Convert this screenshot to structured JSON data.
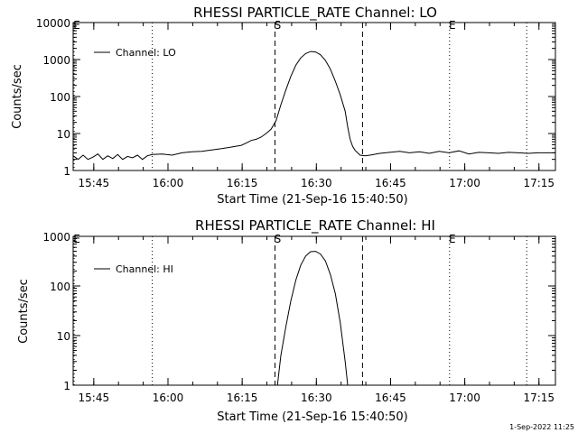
{
  "chart_data": [
    {
      "type": "line",
      "title": "RHESSI PARTICLE_RATE Channel: LO",
      "xlabel": "Start Time (21-Sep-16 15:40:50)",
      "ylabel": "Counts/sec",
      "yscale": "log",
      "ylim": [
        1,
        10000
      ],
      "yticks": [
        1,
        10,
        100,
        1000,
        10000
      ],
      "ytick_labels": [
        "1",
        "10",
        "100",
        "1000",
        "10000"
      ],
      "xlim_minutes": [
        0,
        97.5
      ],
      "xticks_minutes": [
        4.17,
        19.17,
        34.17,
        49.17,
        64.17,
        79.17,
        94.17
      ],
      "xtick_labels": [
        "15:45",
        "16:00",
        "16:15",
        "16:30",
        "16:45",
        "17:00",
        "17:15"
      ],
      "legend": "Channel: LO",
      "legend_position": "top-left",
      "markers": [
        {
          "label": "E",
          "minute": 0.2,
          "style": "dotted"
        },
        {
          "label": "",
          "minute": 16.0,
          "style": "dotted"
        },
        {
          "label": "S",
          "minute": 40.8,
          "style": "dashed"
        },
        {
          "label": "",
          "minute": 58.5,
          "style": "dashed"
        },
        {
          "label": "E",
          "minute": 76.1,
          "style": "dotted"
        },
        {
          "label": "",
          "minute": 91.7,
          "style": "dotted"
        }
      ],
      "series": [
        {
          "name": "Channel: LO",
          "x": [
            0,
            1,
            2,
            3,
            4,
            5,
            6,
            7,
            8,
            9,
            10,
            11,
            12,
            13,
            14,
            15,
            16,
            18,
            20,
            22,
            24,
            26,
            28,
            30,
            32,
            34,
            35,
            36,
            37,
            38,
            39,
            40,
            41,
            42,
            43,
            44,
            45,
            46,
            47,
            48,
            49,
            50,
            51,
            52,
            53,
            54,
            55,
            55.5,
            56,
            56.5,
            57,
            58,
            59,
            60,
            62,
            64,
            66,
            68,
            70,
            72,
            74,
            76,
            78,
            80,
            82,
            84,
            86,
            88,
            90,
            92,
            94,
            97.5
          ],
          "y": [
            2.5,
            2.0,
            2.6,
            2.0,
            2.3,
            2.8,
            2.0,
            2.5,
            2.1,
            2.7,
            2.0,
            2.4,
            2.2,
            2.6,
            2.0,
            2.5,
            2.7,
            2.8,
            2.6,
            3.0,
            3.2,
            3.3,
            3.6,
            3.9,
            4.3,
            4.8,
            5.5,
            6.5,
            7.0,
            8.0,
            10.0,
            13.0,
            22.0,
            60.0,
            150.0,
            350.0,
            700.0,
            1100.0,
            1450.0,
            1650.0,
            1600.0,
            1350.0,
            950.0,
            550.0,
            260.0,
            110.0,
            40.0,
            15.0,
            7.0,
            4.5,
            3.5,
            2.6,
            2.5,
            2.6,
            2.9,
            3.1,
            3.3,
            3.0,
            3.2,
            2.9,
            3.3,
            3.0,
            3.4,
            2.8,
            3.1,
            3.0,
            2.9,
            3.1,
            3.0,
            2.9,
            3.0,
            3.0
          ]
        }
      ]
    },
    {
      "type": "line",
      "title": "RHESSI PARTICLE_RATE Channel: HI",
      "xlabel": "Start Time (21-Sep-16 15:40:50)",
      "ylabel": "Counts/sec",
      "yscale": "log",
      "ylim": [
        1,
        1000
      ],
      "yticks": [
        1,
        10,
        100,
        1000
      ],
      "ytick_labels": [
        "1",
        "10",
        "100",
        "1000"
      ],
      "xlim_minutes": [
        0,
        97.5
      ],
      "xticks_minutes": [
        4.17,
        19.17,
        34.17,
        49.17,
        64.17,
        79.17,
        94.17
      ],
      "xtick_labels": [
        "15:45",
        "16:00",
        "16:15",
        "16:30",
        "16:45",
        "17:00",
        "17:15"
      ],
      "legend": "Channel: HI",
      "legend_position": "top-left",
      "markers": [
        {
          "label": "E",
          "minute": 0.2,
          "style": "dotted"
        },
        {
          "label": "",
          "minute": 16.0,
          "style": "dotted"
        },
        {
          "label": "S",
          "minute": 40.8,
          "style": "dashed"
        },
        {
          "label": "",
          "minute": 58.5,
          "style": "dashed"
        },
        {
          "label": "E",
          "minute": 76.1,
          "style": "dotted"
        },
        {
          "label": "",
          "minute": 91.7,
          "style": "dotted"
        }
      ],
      "series": [
        {
          "name": "Channel: HI",
          "x": [
            41.3,
            42,
            43,
            44,
            45,
            46,
            47,
            48,
            49,
            50,
            51,
            52,
            53,
            54,
            55,
            55.5
          ],
          "y": [
            1.0,
            4.0,
            15.0,
            50.0,
            130.0,
            260.0,
            400.0,
            490.0,
            500.0,
            440.0,
            320.0,
            170.0,
            70.0,
            18.0,
            3.0,
            1.0
          ]
        }
      ]
    }
  ],
  "timestamp": "1-Sep-2022 11:25"
}
